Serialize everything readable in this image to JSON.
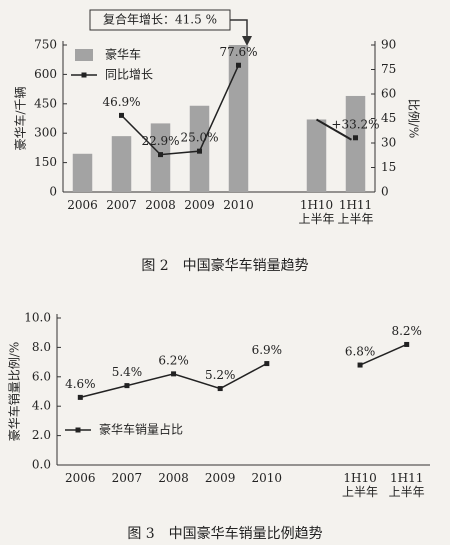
{
  "chart_data": [
    {
      "type": "combo",
      "caption": "图 2　中国豪华车销量趋势",
      "annotation": "复合年增长：41.5 %",
      "ylabel": "豪华车/千辆",
      "y2label": "比例/%",
      "categories": [
        "2006",
        "2007",
        "2008",
        "2009",
        "2010",
        null,
        "1H10\n上半年",
        "1H11\n上半年"
      ],
      "series": [
        {
          "name": "豪华车",
          "type": "bar",
          "color": "#a3a3a3",
          "values": [
            195,
            285,
            350,
            440,
            750,
            null,
            370,
            490
          ]
        },
        {
          "name": "同比增长",
          "type": "line",
          "axis": "y2",
          "color": "#222222",
          "values": [
            null,
            46.9,
            22.9,
            25.0,
            77.6,
            null,
            null,
            33.2
          ],
          "value_labels": [
            null,
            "46.9%",
            "22.9%",
            "25.0%",
            "77.6%",
            null,
            null,
            "+33.2%"
          ]
        }
      ],
      "ylim": [
        0,
        750
      ],
      "yticks": [
        0,
        150,
        300,
        450,
        600,
        750
      ],
      "y2lim": [
        0,
        90
      ],
      "y2ticks": [
        0,
        15,
        30,
        45,
        60,
        75,
        90
      ],
      "legend": "upper left"
    },
    {
      "type": "line",
      "caption": "图 3　中国豪华车销量比例趋势",
      "ylabel": "豪华车销量比例/%",
      "categories": [
        "2006",
        "2007",
        "2008",
        "2009",
        "2010",
        null,
        "1H10\n上半年",
        "1H11\n上半年"
      ],
      "series": [
        {
          "name": "豪华车销量占比",
          "type": "line",
          "color": "#222222",
          "values": [
            4.6,
            5.4,
            6.2,
            5.2,
            6.9,
            null,
            6.8,
            8.2
          ],
          "value_labels": [
            "4.6%",
            "5.4%",
            "6.2%",
            "5.2%",
            "6.9%",
            null,
            "6.8%",
            "8.2%"
          ]
        }
      ],
      "ylim": [
        0,
        10
      ],
      "yticks": [
        {
          "value": 0,
          "label": "0.0"
        },
        {
          "value": 2,
          "label": "2.0"
        },
        {
          "value": 4,
          "label": "4.0"
        },
        {
          "value": 6,
          "label": "6.0"
        },
        {
          "value": 8,
          "label": "8.0"
        },
        {
          "value": 10,
          "label": "10.0"
        }
      ],
      "legend": "lower left"
    }
  ]
}
